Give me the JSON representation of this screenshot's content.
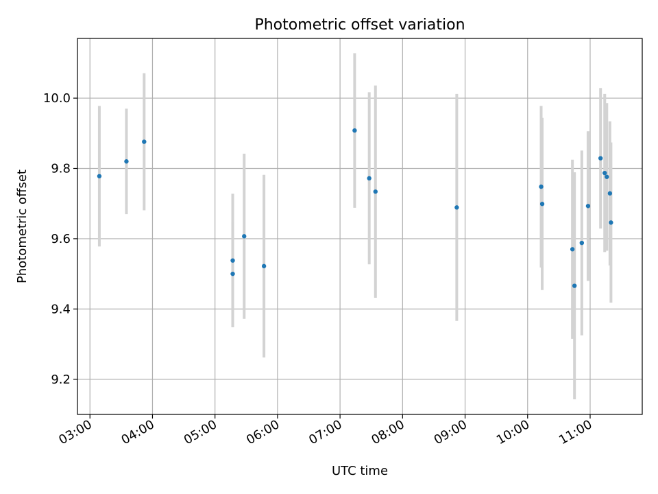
{
  "chart_data": {
    "type": "scatter",
    "title": "Photometric offset variation",
    "xlabel": "UTC time",
    "ylabel": "Photometric offset",
    "x_ticks": [
      "03:00",
      "04:00",
      "05:00",
      "06:00",
      "07:00",
      "08:00",
      "09:00",
      "10:00",
      "11:00"
    ],
    "y_ticks": [
      "9.2",
      "9.4",
      "9.6",
      "9.8",
      "10.0"
    ],
    "xlim": [
      "02:48",
      "11:50"
    ],
    "ylim": [
      9.1,
      10.17
    ],
    "grid": true,
    "point_color": "#1f77b4",
    "errorbar_color": "#d3d3d3",
    "points": [
      {
        "x": "03:09",
        "y": 9.778,
        "err": 0.2
      },
      {
        "x": "03:35",
        "y": 9.82,
        "err": 0.15
      },
      {
        "x": "03:52",
        "y": 9.876,
        "err": 0.195
      },
      {
        "x": "05:17",
        "y": 9.5,
        "err": 0.15
      },
      {
        "x": "05:17",
        "y": 9.538,
        "err": 0.19
      },
      {
        "x": "05:28",
        "y": 9.607,
        "err": 0.235
      },
      {
        "x": "05:47",
        "y": 9.522,
        "err": 0.26
      },
      {
        "x": "07:14",
        "y": 9.908,
        "err": 0.22
      },
      {
        "x": "07:28",
        "y": 9.772,
        "err": 0.245
      },
      {
        "x": "07:34",
        "y": 9.734,
        "err": 0.302
      },
      {
        "x": "08:52",
        "y": 9.689,
        "err": 0.323
      },
      {
        "x": "10:13",
        "y": 9.748,
        "err": 0.23
      },
      {
        "x": "10:14",
        "y": 9.699,
        "err": 0.245
      },
      {
        "x": "10:43",
        "y": 9.57,
        "err": 0.255
      },
      {
        "x": "10:45",
        "y": 9.466,
        "err": 0.323
      },
      {
        "x": "10:52",
        "y": 9.588,
        "err": 0.263
      },
      {
        "x": "10:58",
        "y": 9.693,
        "err": 0.213
      },
      {
        "x": "11:10",
        "y": 9.829,
        "err": 0.2
      },
      {
        "x": "11:14",
        "y": 9.787,
        "err": 0.225
      },
      {
        "x": "11:16",
        "y": 9.776,
        "err": 0.21
      },
      {
        "x": "11:19",
        "y": 9.729,
        "err": 0.205
      },
      {
        "x": "11:20",
        "y": 9.646,
        "err": 0.228
      }
    ]
  }
}
